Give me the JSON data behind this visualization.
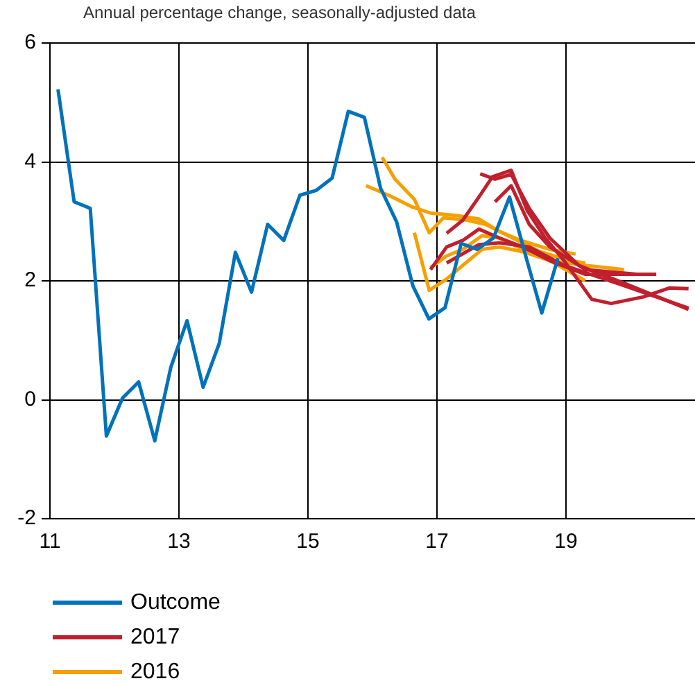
{
  "chart_data": {
    "type": "line",
    "title": "Annual percentage change, seasonally-adjusted data",
    "xlim": [
      11,
      21
    ],
    "xticks": [
      11,
      13,
      15,
      17,
      19
    ],
    "ylim": [
      -2,
      6
    ],
    "yticks": [
      -2,
      0,
      2,
      4,
      6
    ],
    "grid": true,
    "legend": "bottom",
    "marker": "none",
    "line_style": "solid",
    "series": [
      {
        "name": "Outcome",
        "color": "#0072bc",
        "x": [
          11.125,
          11.375,
          11.625,
          11.875,
          12.125,
          12.375,
          12.625,
          12.875,
          13.125,
          13.375,
          13.625,
          13.875,
          14.125,
          14.375,
          14.625,
          14.875,
          15.125,
          15.375,
          15.625,
          15.875,
          16.125,
          16.375,
          16.625,
          16.875,
          17.125,
          17.375,
          17.625,
          17.875,
          18.125,
          18.375,
          18.625,
          18.875
        ],
        "values": [
          5.22,
          3.33,
          3.22,
          -0.61,
          0.03,
          0.3,
          -0.69,
          0.55,
          1.33,
          0.21,
          0.95,
          2.48,
          1.81,
          2.95,
          2.68,
          3.44,
          3.52,
          3.73,
          4.85,
          4.75,
          3.56,
          2.99,
          1.92,
          1.36,
          1.55,
          2.63,
          2.53,
          2.72,
          3.41,
          2.42,
          1.46,
          2.38
        ]
      },
      {
        "name": "2016",
        "color": "#f5a000",
        "x": [
          15.9,
          16.25,
          16.6,
          16.9,
          17.3,
          17.65,
          17.97,
          18.3,
          18.75,
          19.15
        ],
        "values": [
          3.6,
          3.44,
          3.25,
          3.14,
          3.1,
          3.04,
          2.83,
          2.68,
          2.53,
          2.45
        ]
      },
      {
        "color": "#f5a000",
        "x": [
          16.15,
          16.35,
          16.65,
          16.88,
          17.1,
          17.47,
          17.75,
          18.1,
          18.6,
          19.05,
          19.3
        ],
        "values": [
          4.08,
          3.71,
          3.37,
          2.81,
          3.06,
          3.02,
          2.95,
          2.76,
          2.49,
          2.34,
          2.3
        ]
      },
      {
        "color": "#f5a000",
        "x": [
          16.65,
          16.88,
          17.15,
          17.4,
          17.7,
          17.97,
          18.33,
          18.75,
          19.3
        ],
        "values": [
          2.81,
          1.84,
          2.03,
          2.26,
          2.53,
          2.57,
          2.49,
          2.34,
          2.0
        ]
      },
      {
        "color": "#f5a000",
        "x": [
          16.9,
          17.15,
          17.4,
          17.7,
          17.97,
          18.33,
          18.75,
          19.3,
          19.9
        ],
        "values": [
          2.22,
          2.42,
          2.53,
          2.76,
          2.72,
          2.53,
          2.34,
          2.26,
          2.19
        ]
      },
      {
        "name": "2017",
        "color": "#c0202e",
        "x": [
          17.15,
          17.4,
          17.65,
          17.86,
          18.15,
          18.4,
          18.68,
          18.97,
          19.4,
          19.7,
          20.2,
          20.6,
          20.9
        ],
        "values": [
          2.8,
          3.02,
          3.41,
          3.75,
          3.86,
          3.18,
          2.72,
          2.34,
          1.69,
          1.62,
          1.73,
          1.88,
          1.87
        ]
      },
      {
        "color": "#c0202e",
        "x": [
          17.67,
          17.9,
          18.15,
          18.43,
          18.75,
          19.2,
          19.9,
          20.9
        ],
        "values": [
          3.8,
          3.71,
          3.79,
          3.22,
          2.72,
          2.26,
          1.96,
          1.52
        ]
      },
      {
        "color": "#c0202e",
        "x": [
          16.9,
          17.15,
          17.4,
          17.65,
          17.97,
          18.33,
          18.75,
          19.3,
          20.4
        ],
        "values": [
          2.19,
          2.57,
          2.68,
          2.87,
          2.72,
          2.57,
          2.34,
          2.11,
          2.11
        ]
      },
      {
        "color": "#c0202e",
        "x": [
          17.9,
          18.15,
          18.43,
          18.75,
          19.3,
          20.1
        ],
        "values": [
          3.33,
          3.6,
          2.95,
          2.57,
          2.19,
          2.11
        ]
      },
      {
        "color": "#c0202e",
        "x": [
          17.15,
          17.65,
          17.97,
          18.43,
          18.97,
          19.9,
          20.9
        ],
        "values": [
          2.3,
          2.61,
          2.64,
          2.57,
          2.26,
          1.92,
          1.54
        ]
      }
    ]
  }
}
